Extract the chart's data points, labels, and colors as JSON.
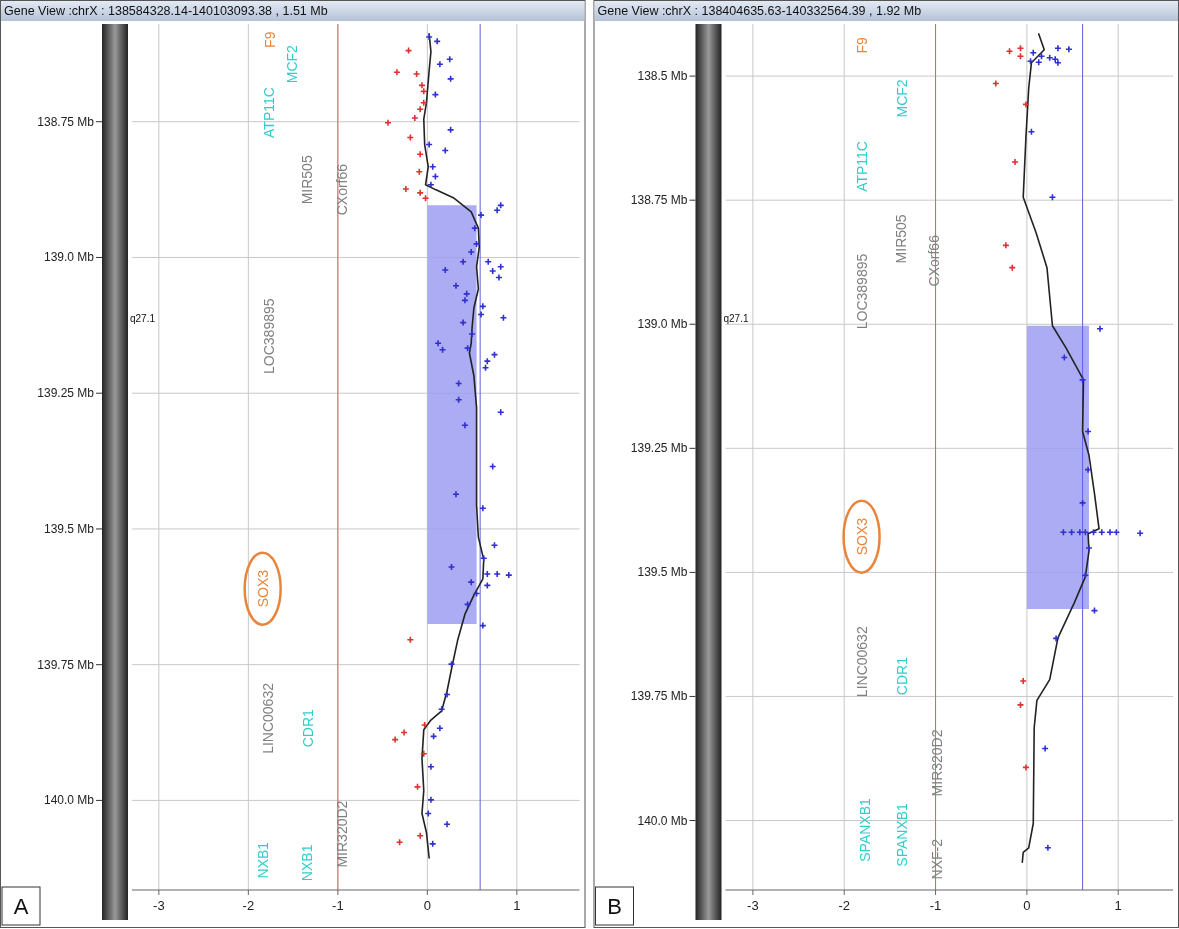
{
  "chart_data": [
    {
      "type": "scatter",
      "title": "Gene View :chrX : 138584328.14-140103093.38 , 1.51 Mb",
      "xlim": [
        -3.3,
        1.7
      ],
      "xticks": [
        -3,
        -2,
        -1,
        0,
        1
      ],
      "ylim": [
        140.165,
        138.57
      ],
      "yticks": [
        {
          "value": 138.75,
          "label": "138.75 Mb"
        },
        {
          "value": 139.0,
          "label": "139.0 Mb"
        },
        {
          "value": 139.25,
          "label": "139.25 Mb"
        },
        {
          "value": 139.5,
          "label": "139.5 Mb"
        },
        {
          "value": 139.75,
          "label": "139.75 Mb"
        },
        {
          "value": 140.0,
          "label": "140.0 Mb"
        }
      ],
      "grid": true,
      "ref_lines": [
        {
          "axis": "x",
          "value": -1,
          "color": "#e06060"
        },
        {
          "axis": "x",
          "value": 0.59,
          "color": "#6060e0"
        }
      ],
      "annotations": [
        "A",
        "q27.1",
        "F9",
        "SOX3",
        "MCF2",
        "ATP11C",
        "CDR1",
        "NXB1",
        "NXB1",
        "MIR505",
        "CXorf66",
        "LOC389895",
        "LINC00632",
        "MIR320D2"
      ],
      "series": [
        {
          "type": "area",
          "color": "#9d9df2",
          "x": [
            0,
            0.55,
            0.55,
            0
          ],
          "values": [
            138.904,
            138.904,
            139.675,
            139.675
          ]
        },
        {
          "marker": "cross",
          "color": "#e03030",
          "x": [
            -0.21,
            -0.34,
            -0.12,
            -0.06,
            -0.04,
            -0.04,
            -0.08,
            -0.14,
            -0.44,
            -0.19,
            -0.08,
            -0.09,
            -0.24,
            -0.08,
            -0.02,
            -0.19,
            -0.03,
            -0.26,
            -0.36,
            -0.04,
            -0.11,
            -0.08,
            -0.31
          ],
          "values": [
            138.619,
            138.659,
            138.662,
            138.683,
            138.694,
            138.715,
            138.727,
            138.743,
            138.752,
            138.779,
            138.81,
            138.842,
            138.874,
            138.881,
            138.891,
            139.704,
            139.861,
            139.875,
            139.888,
            139.914,
            139.975,
            140.065,
            140.077
          ]
        },
        {
          "marker": "cross",
          "color": "#3030d0",
          "x": [
            0.02,
            0.11,
            0.25,
            0.14,
            0.26,
            0.09,
            0.26,
            0.2,
            0.02,
            0.06,
            0.09,
            0.04,
            0.82,
            0.78,
            0.6,
            0.53,
            0.55,
            0.49,
            0.4,
            0.2,
            0.68,
            0.73,
            0.8,
            0.82,
            0.32,
            0.44,
            0.42,
            0.62,
            0.6,
            0.85,
            0.4,
            0.5,
            0.12,
            0.17,
            0.45,
            0.75,
            0.67,
            0.65,
            0.35,
            0.35,
            0.42,
            0.82,
            0.73,
            0.32,
            0.62,
            0.75,
            0.63,
            0.27,
            0.67,
            0.78,
            0.91,
            0.49,
            0.67,
            0.55,
            0.62,
            0.45,
            0.27,
            0.22,
            0.16,
            0.14,
            0.07,
            0.04,
            0.04,
            0.01,
            0.22,
            0.06
          ],
          "values": [
            138.594,
            138.602,
            138.635,
            138.644,
            138.671,
            138.7,
            138.765,
            138.803,
            138.792,
            138.833,
            138.851,
            138.866,
            138.904,
            138.913,
            138.922,
            138.946,
            138.975,
            138.99,
            139.008,
            139.023,
            139.008,
            139.025,
            139.037,
            139.017,
            139.052,
            139.067,
            139.079,
            139.09,
            139.105,
            139.111,
            139.12,
            139.141,
            139.158,
            139.17,
            139.167,
            139.179,
            139.191,
            139.203,
            139.232,
            139.262,
            139.309,
            139.285,
            139.385,
            139.436,
            139.462,
            139.53,
            139.554,
            139.57,
            139.583,
            139.583,
            139.585,
            139.598,
            139.604,
            139.619,
            139.678,
            139.639,
            139.749,
            139.805,
            139.832,
            139.867,
            139.882,
            139.938,
            139.999,
            140.024,
            140.044,
            140.08
          ]
        },
        {
          "type": "line",
          "color": "#222222",
          "line_style": "solid",
          "x": [
            0.02,
            0.04,
            0.02,
            -0.01,
            -0.04,
            -0.03,
            0.01,
            -0.02,
            0.09,
            0.29,
            0.49,
            0.57,
            0.58,
            0.55,
            0.57,
            0.52,
            0.5,
            0.49,
            0.47,
            0.52,
            0.55,
            0.55,
            0.55,
            0.57,
            0.63,
            0.62,
            0.52,
            0.42,
            0.34,
            0.27,
            0.22,
            0.16,
            0.04,
            -0.04,
            -0.06,
            -0.04,
            -0.06,
            -0.01,
            0.02
          ],
          "values": [
            138.588,
            138.621,
            138.656,
            138.715,
            138.745,
            138.792,
            138.833,
            138.866,
            138.875,
            138.89,
            138.916,
            138.946,
            138.981,
            139.017,
            139.058,
            139.093,
            139.129,
            139.158,
            139.176,
            139.218,
            139.277,
            139.365,
            139.456,
            139.515,
            139.557,
            139.592,
            139.622,
            139.657,
            139.704,
            139.758,
            139.799,
            139.835,
            139.852,
            139.87,
            139.923,
            139.982,
            140.024,
            140.059,
            140.106
          ]
        }
      ]
    },
    {
      "type": "scatter",
      "title": "Gene View :chrX : 138404635.63-140332564.39 , 1.92 Mb",
      "xlim": [
        -3.3,
        1.6
      ],
      "xticks": [
        -3,
        -2,
        -1,
        0,
        1
      ],
      "ylim": [
        140.14,
        138.395
      ],
      "yticks": [
        {
          "value": 138.5,
          "label": "138.5 Mb"
        },
        {
          "value": 138.75,
          "label": "138.75 Mb"
        },
        {
          "value": 139.0,
          "label": "139.0 Mb"
        },
        {
          "value": 139.25,
          "label": "139.25 Mb"
        },
        {
          "value": 139.5,
          "label": "139.5 Mb"
        },
        {
          "value": 139.75,
          "label": "139.75 Mb"
        },
        {
          "value": 140.0,
          "label": "140.0 Mb"
        }
      ],
      "grid": true,
      "ref_lines": [
        {
          "axis": "x",
          "value": -1,
          "color": "#e06060"
        },
        {
          "axis": "x",
          "value": 0.61,
          "color": "#6060e0"
        }
      ],
      "annotations": [
        "B",
        "q27.1",
        "F9",
        "SOX3",
        "MCF2",
        "ATP11C",
        "CDR1",
        "SPANXB1",
        "SPANXB1",
        "MIR505",
        "CXorf66",
        "LOC389895",
        "LINC00632",
        "MIR320D2",
        "NXF-2"
      ],
      "series": [
        {
          "type": "area",
          "color": "#9d9df2",
          "x": [
            0,
            0.68,
            0.68,
            0
          ],
          "values": [
            139.003,
            139.003,
            139.574,
            139.574
          ]
        },
        {
          "marker": "cross",
          "color": "#e03030",
          "x": [
            -0.19,
            -0.07,
            -0.07,
            -0.34,
            -0.01,
            -0.13,
            -0.23,
            -0.16,
            -0.04,
            -0.07,
            -0.01
          ],
          "values": [
            138.45,
            138.444,
            138.46,
            138.515,
            138.557,
            138.673,
            138.841,
            138.886,
            139.719,
            139.767,
            139.893
          ]
        },
        {
          "marker": "cross",
          "color": "#3030d0",
          "x": [
            0.34,
            0.46,
            0.07,
            0.16,
            0.25,
            0.31,
            0.34,
            0.04,
            0.13,
            0.05,
            0.28,
            0.8,
            0.41,
            0.61,
            0.67,
            0.67,
            0.61,
            0.4,
            0.49,
            0.58,
            0.64,
            0.73,
            0.82,
            0.91,
            0.98,
            1.24,
            0.68,
            0.64,
            0.74,
            0.32,
            0.2,
            0.23
          ],
          "values": [
            138.444,
            138.446,
            138.453,
            138.46,
            138.463,
            138.466,
            138.473,
            138.47,
            138.472,
            138.612,
            138.744,
            139.009,
            139.067,
            139.112,
            139.216,
            139.293,
            139.36,
            139.419,
            139.419,
            139.419,
            139.419,
            139.419,
            139.419,
            139.419,
            139.419,
            139.421,
            139.451,
            139.506,
            139.577,
            139.633,
            139.855,
            140.055
          ]
        },
        {
          "type": "line",
          "color": "#222222",
          "line_style": "solid",
          "x": [
            0.13,
            0.19,
            0.05,
            0.02,
            -0.01,
            -0.04,
            0.1,
            0.22,
            0.28,
            0.43,
            0.62,
            0.61,
            0.68,
            0.74,
            0.79,
            0.67,
            0.68,
            0.64,
            0.52,
            0.34,
            0.25,
            0.11,
            0.08,
            0.07,
            0.02,
            -0.04,
            -0.05
          ],
          "values": [
            138.415,
            138.447,
            138.473,
            138.525,
            138.622,
            138.744,
            138.815,
            138.886,
            139.003,
            139.048,
            139.112,
            139.216,
            139.264,
            139.341,
            139.412,
            139.422,
            139.457,
            139.509,
            139.561,
            139.632,
            139.716,
            139.758,
            139.813,
            140.006,
            140.055,
            140.064,
            140.084
          ]
        }
      ]
    }
  ]
}
